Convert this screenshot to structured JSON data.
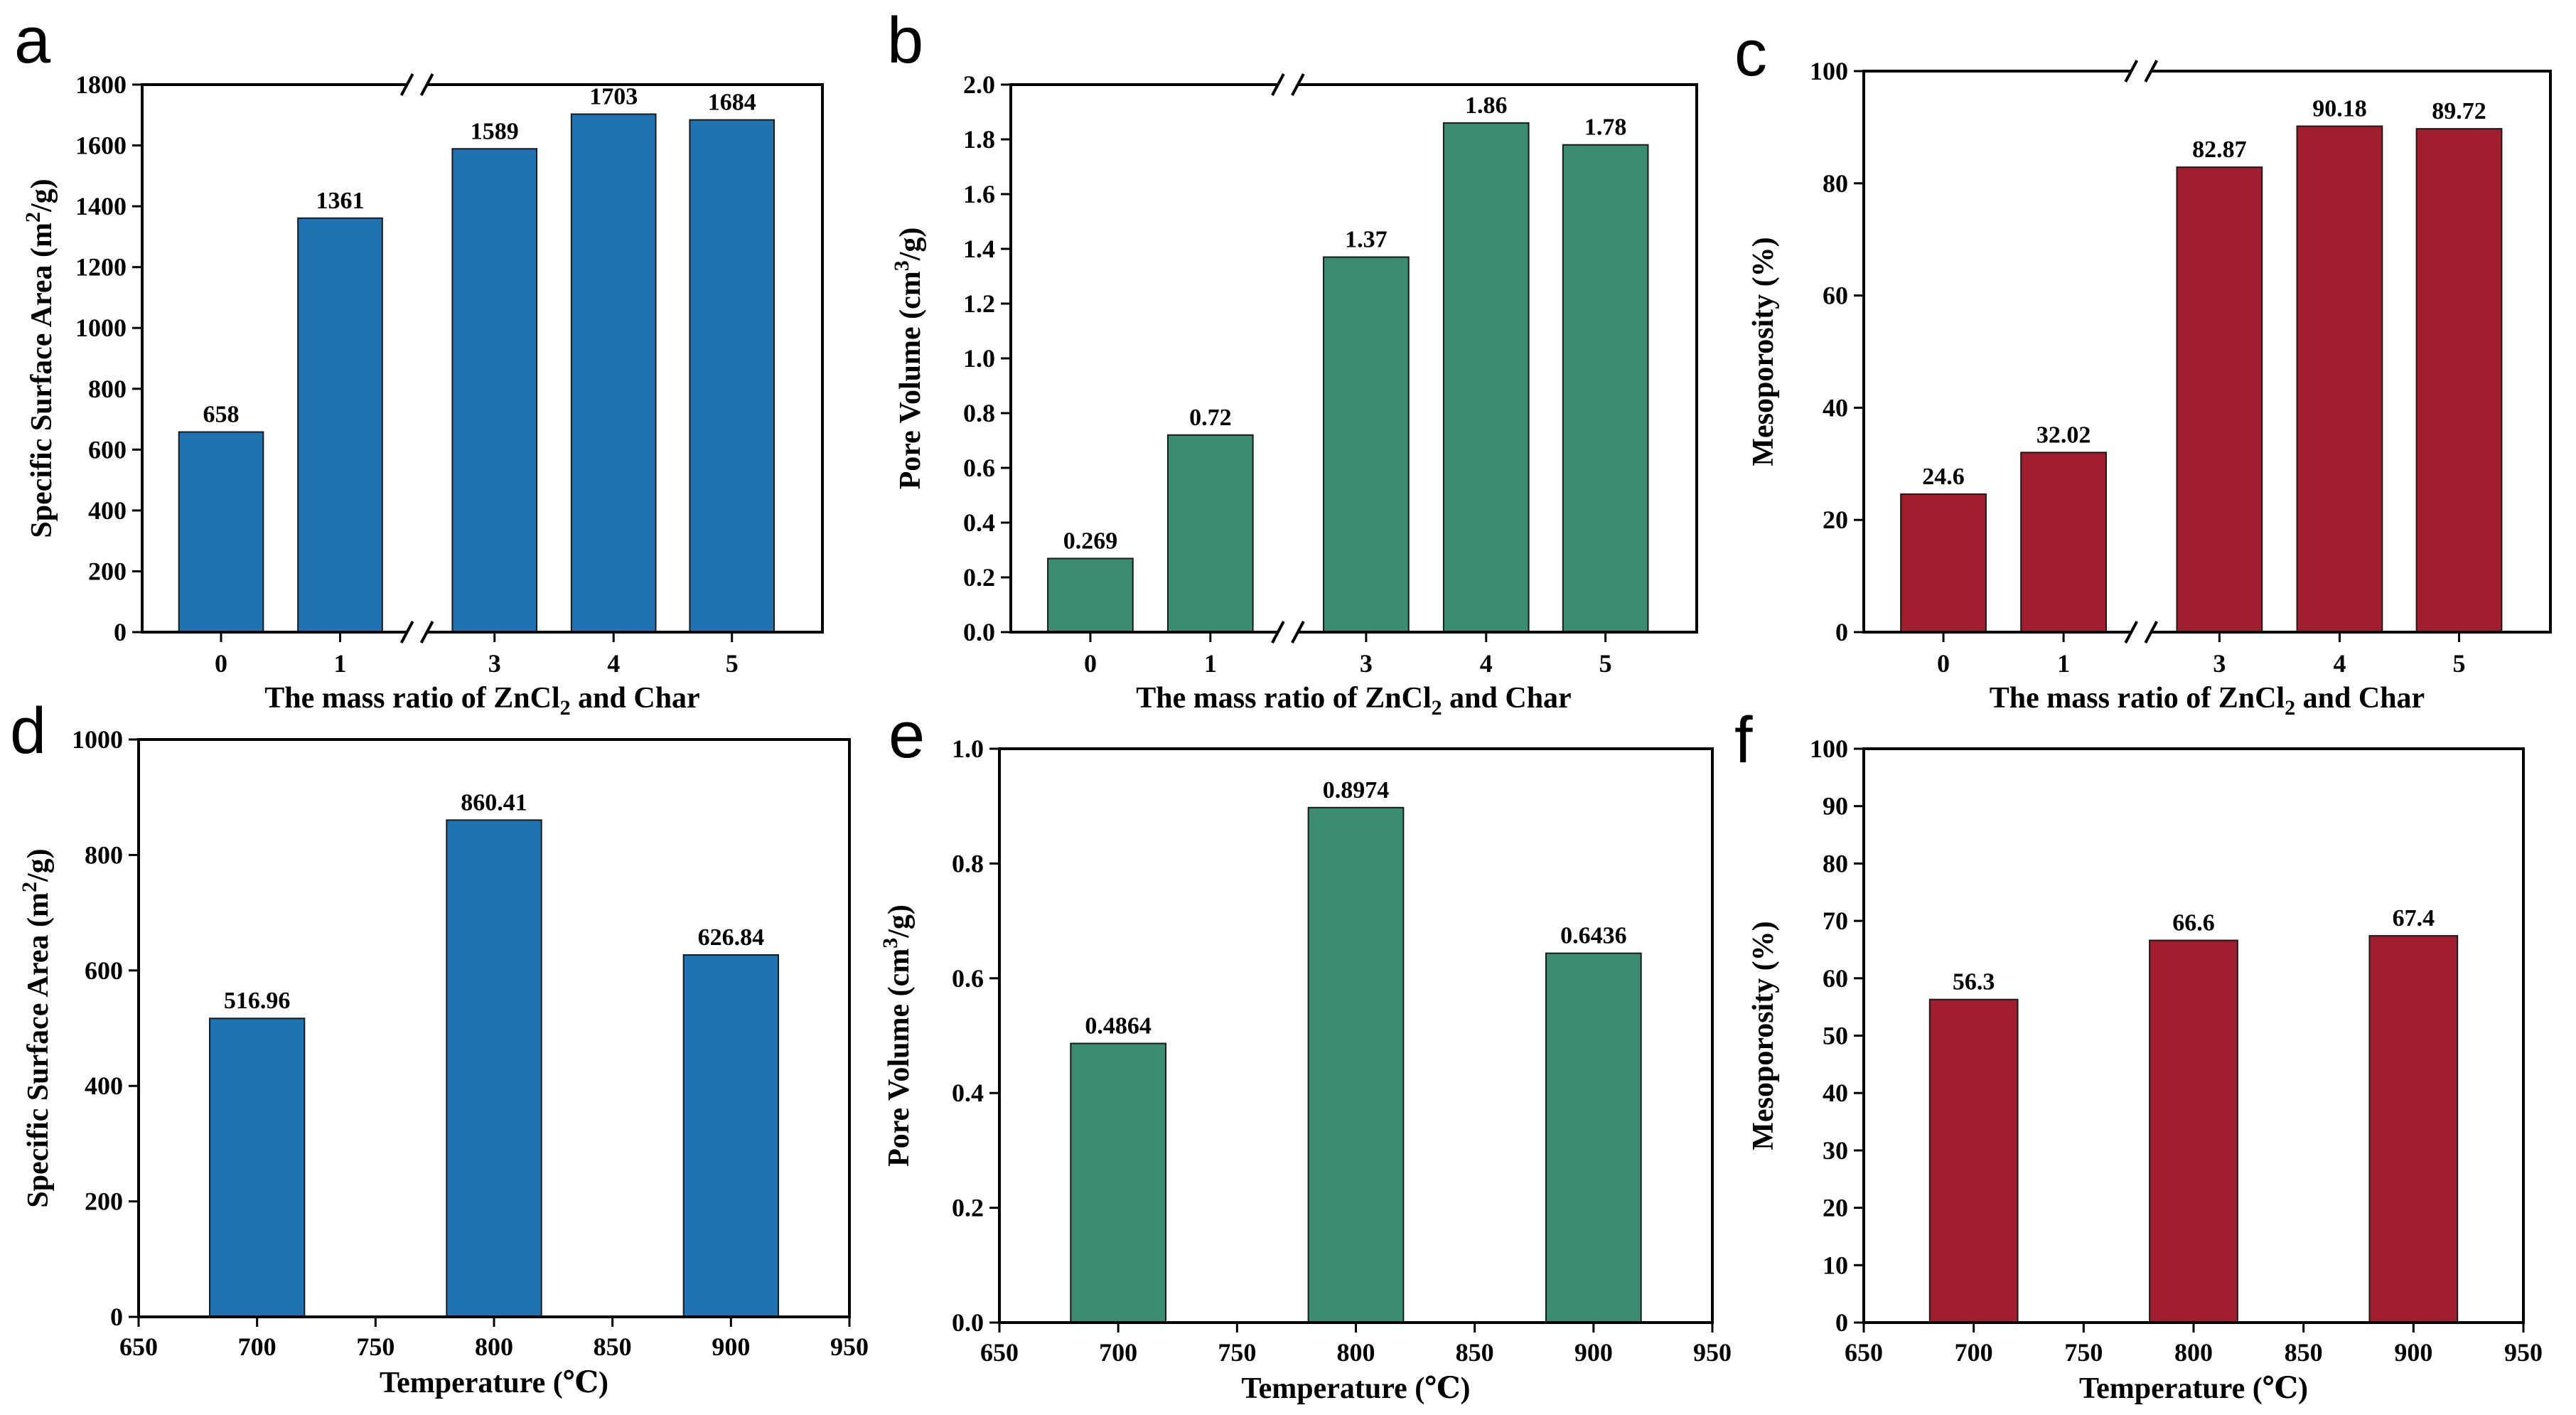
{
  "chart_data": [
    {
      "type": "bar",
      "letter": "a",
      "categories": [
        "0",
        "1",
        "3",
        "4",
        "5"
      ],
      "values": [
        658,
        1361,
        1589,
        1703,
        1684
      ],
      "value_labels": [
        "658",
        "1361",
        "1589",
        "1703",
        "1684"
      ],
      "color": "#1f73b2",
      "ylim": [
        0,
        1800
      ],
      "yticks": [
        0,
        200,
        400,
        600,
        800,
        1000,
        1200,
        1400,
        1600,
        1800
      ],
      "ytick_labels": [
        "0",
        "200",
        "400",
        "600",
        "800",
        "1000",
        "1200",
        "1400",
        "1600",
        "1800"
      ],
      "ylabel_parts": [
        {
          "t": "Specific Surface Area (m"
        },
        {
          "t": "2",
          "sup": true
        },
        {
          "t": "/g)"
        }
      ],
      "xlabel_parts": [
        {
          "t": "The mass ratio of ZnCl"
        },
        {
          "t": "2",
          "sub": true
        },
        {
          "t": " and Char"
        }
      ],
      "axis_break": "between 1 and 3"
    },
    {
      "type": "bar",
      "letter": "b",
      "categories": [
        "0",
        "1",
        "3",
        "4",
        "5"
      ],
      "values": [
        0.269,
        0.72,
        1.37,
        1.86,
        1.78
      ],
      "value_labels": [
        "0.269",
        "0.72",
        "1.37",
        "1.86",
        "1.78"
      ],
      "color": "#3a8d70",
      "ylim": [
        0,
        2.0
      ],
      "yticks": [
        0,
        0.2,
        0.4,
        0.6,
        0.8,
        1.0,
        1.2,
        1.4,
        1.6,
        1.8,
        2.0
      ],
      "ytick_labels": [
        "0.0",
        "0.2",
        "0.4",
        "0.6",
        "0.8",
        "1.0",
        "1.2",
        "1.4",
        "1.6",
        "1.8",
        "2.0"
      ],
      "ylabel_parts": [
        {
          "t": "Pore Volume (cm"
        },
        {
          "t": "3",
          "sup": true
        },
        {
          "t": "/g)"
        }
      ],
      "xlabel_parts": [
        {
          "t": "The mass ratio of ZnCl"
        },
        {
          "t": "2",
          "sub": true
        },
        {
          "t": " and Char"
        }
      ],
      "axis_break": "between 1 and 3"
    },
    {
      "type": "bar",
      "letter": "c",
      "categories": [
        "0",
        "1",
        "3",
        "4",
        "5"
      ],
      "values": [
        24.6,
        32.02,
        82.87,
        90.18,
        89.72
      ],
      "value_labels": [
        "24.6",
        "32.02",
        "82.87",
        "90.18",
        "89.72"
      ],
      "color": "#a21e2e",
      "ylim": [
        0,
        100
      ],
      "yticks": [
        0,
        20,
        40,
        60,
        80,
        100
      ],
      "ytick_labels": [
        "0",
        "20",
        "40",
        "60",
        "80",
        "100"
      ],
      "ylabel_parts": [
        {
          "t": "Mesoporosity (%)"
        }
      ],
      "xlabel_parts": [
        {
          "t": "The mass ratio of ZnCl"
        },
        {
          "t": "2",
          "sub": true
        },
        {
          "t": " and Char"
        }
      ],
      "axis_break": "between 1 and 3"
    },
    {
      "type": "bar",
      "letter": "d",
      "x": [
        700,
        800,
        900
      ],
      "values": [
        516.96,
        860.41,
        626.84
      ],
      "value_labels": [
        "516.96",
        "860.41",
        "626.84"
      ],
      "color": "#1f73b2",
      "xlim": [
        650,
        950
      ],
      "xticks": [
        650,
        700,
        750,
        800,
        850,
        900,
        950
      ],
      "xtick_labels": [
        "650",
        "700",
        "750",
        "800",
        "850",
        "900",
        "950"
      ],
      "ylim": [
        0,
        1000
      ],
      "yticks": [
        0,
        200,
        400,
        600,
        800,
        1000
      ],
      "ytick_labels": [
        "0",
        "200",
        "400",
        "600",
        "800",
        "1000"
      ],
      "ylabel_parts": [
        {
          "t": "Specific Surface Area (m"
        },
        {
          "t": "2",
          "sup": true
        },
        {
          "t": "/g)"
        }
      ],
      "xlabel_parts": [
        {
          "t": "Temperature (℃)"
        }
      ]
    },
    {
      "type": "bar",
      "letter": "e",
      "x": [
        700,
        800,
        900
      ],
      "values": [
        0.4864,
        0.8974,
        0.6436
      ],
      "value_labels": [
        "0.4864",
        "0.8974",
        "0.6436"
      ],
      "color": "#3a8d70",
      "xlim": [
        650,
        950
      ],
      "xticks": [
        650,
        700,
        750,
        800,
        850,
        900,
        950
      ],
      "xtick_labels": [
        "650",
        "700",
        "750",
        "800",
        "850",
        "900",
        "950"
      ],
      "ylim": [
        0,
        1.0
      ],
      "yticks": [
        0,
        0.2,
        0.4,
        0.6,
        0.8,
        1.0
      ],
      "ytick_labels": [
        "0.0",
        "0.2",
        "0.4",
        "0.6",
        "0.8",
        "1.0"
      ],
      "ylabel_parts": [
        {
          "t": "Pore Volume (cm"
        },
        {
          "t": "3",
          "sup": true
        },
        {
          "t": "/g)"
        }
      ],
      "xlabel_parts": [
        {
          "t": "Temperature (℃)"
        }
      ]
    },
    {
      "type": "bar",
      "letter": "f",
      "x": [
        700,
        800,
        900
      ],
      "values": [
        56.3,
        66.6,
        67.4
      ],
      "value_labels": [
        "56.3",
        "66.6",
        "67.4"
      ],
      "color": "#a21e2e",
      "xlim": [
        650,
        950
      ],
      "xticks": [
        650,
        700,
        750,
        800,
        850,
        900,
        950
      ],
      "xtick_labels": [
        "650",
        "700",
        "750",
        "800",
        "850",
        "900",
        "950"
      ],
      "ylim": [
        0,
        100
      ],
      "yticks": [
        0,
        10,
        20,
        30,
        40,
        50,
        60,
        70,
        80,
        90,
        100
      ],
      "ytick_labels": [
        "0",
        "10",
        "20",
        "30",
        "40",
        "50",
        "60",
        "70",
        "80",
        "90",
        "100"
      ],
      "ylabel_parts": [
        {
          "t": "Mesoporosity (%)"
        }
      ],
      "xlabel_parts": [
        {
          "t": "Temperature (℃)"
        }
      ]
    }
  ]
}
